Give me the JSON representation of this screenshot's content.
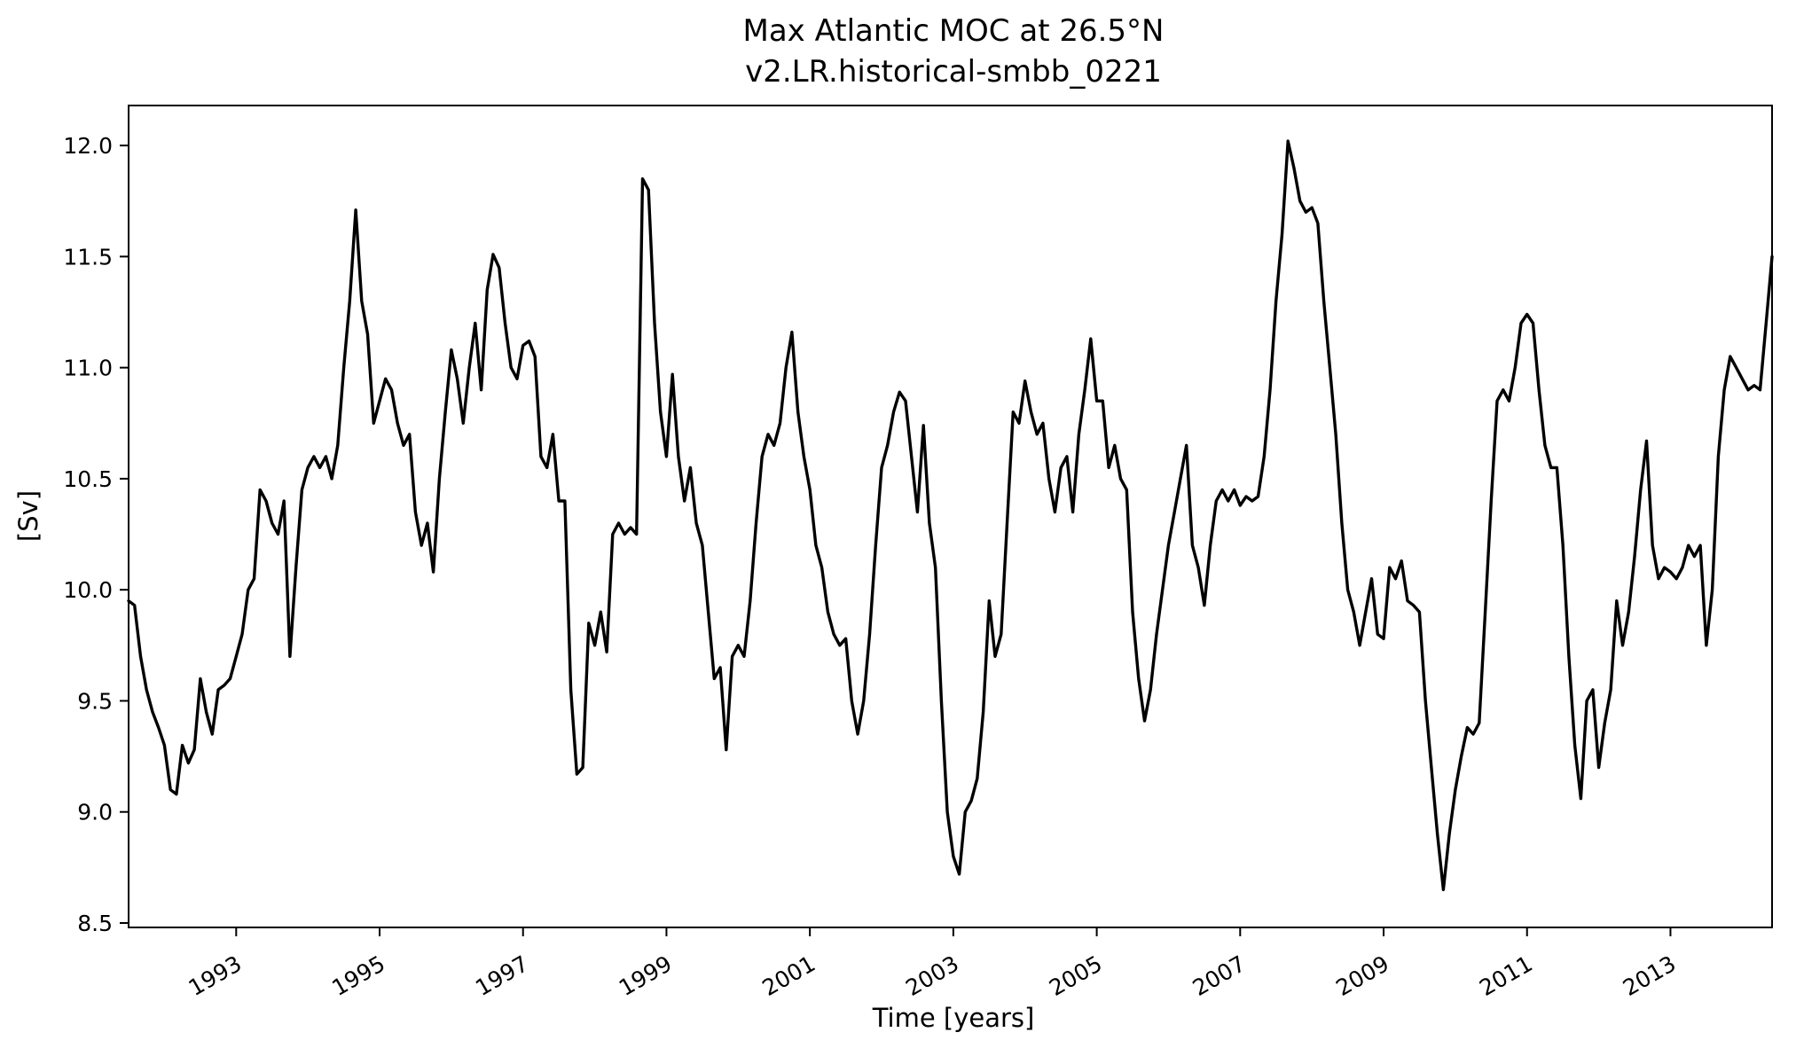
{
  "chart_data": {
    "type": "line",
    "title": "Max Atlantic MOC at 26.5°N",
    "subtitle": "v2.LR.historical-smbb_0221",
    "xlabel": "Time [years]",
    "ylabel": "[Sv]",
    "line_color": "#000000",
    "line_width": 3.4,
    "grid": false,
    "legend": "none",
    "xlim": [
      1991.5,
      2014.4167
    ],
    "ylim": [
      8.48,
      12.18
    ],
    "xticks": [
      1993,
      1995,
      1997,
      1999,
      2001,
      2003,
      2005,
      2007,
      2009,
      2011,
      2013
    ],
    "xtick_labels": [
      "1993",
      "1995",
      "1997",
      "1999",
      "2001",
      "2003",
      "2005",
      "2007",
      "2009",
      "2011",
      "2013"
    ],
    "yticks": [
      8.5,
      9.0,
      9.5,
      10.0,
      10.5,
      11.0,
      11.5,
      12.0
    ],
    "ytick_labels": [
      "8.5",
      "9.0",
      "9.5",
      "10.0",
      "10.5",
      "11.0",
      "11.5",
      "12.0"
    ],
    "x_start": 1991.5,
    "x_step": 0.0833333,
    "values": [
      9.95,
      9.93,
      9.7,
      9.55,
      9.45,
      9.38,
      9.3,
      9.1,
      9.08,
      9.3,
      9.22,
      9.28,
      9.6,
      9.45,
      9.35,
      9.55,
      9.57,
      9.6,
      9.7,
      9.8,
      10.0,
      10.05,
      10.45,
      10.4,
      10.3,
      10.25,
      10.4,
      9.7,
      10.1,
      10.45,
      10.55,
      10.6,
      10.55,
      10.6,
      10.5,
      10.65,
      11.0,
      11.3,
      11.71,
      11.3,
      11.15,
      10.75,
      10.85,
      10.95,
      10.9,
      10.75,
      10.65,
      10.7,
      10.35,
      10.2,
      10.3,
      10.08,
      10.5,
      10.8,
      11.08,
      10.95,
      10.75,
      11.0,
      11.2,
      10.9,
      11.35,
      11.51,
      11.45,
      11.2,
      11.0,
      10.95,
      11.1,
      11.12,
      11.05,
      10.6,
      10.55,
      10.7,
      10.4,
      10.4,
      9.55,
      9.17,
      9.2,
      9.85,
      9.75,
      9.9,
      9.72,
      10.25,
      10.3,
      10.25,
      10.28,
      10.25,
      11.85,
      11.8,
      11.2,
      10.8,
      10.6,
      10.97,
      10.6,
      10.4,
      10.55,
      10.3,
      10.2,
      9.9,
      9.6,
      9.65,
      9.28,
      9.7,
      9.75,
      9.7,
      9.95,
      10.3,
      10.6,
      10.7,
      10.65,
      10.75,
      11.0,
      11.16,
      10.8,
      10.6,
      10.45,
      10.2,
      10.1,
      9.9,
      9.8,
      9.75,
      9.78,
      9.5,
      9.35,
      9.5,
      9.8,
      10.2,
      10.55,
      10.65,
      10.8,
      10.89,
      10.85,
      10.6,
      10.35,
      10.74,
      10.3,
      10.1,
      9.5,
      9.0,
      8.8,
      8.72,
      9.0,
      9.05,
      9.15,
      9.45,
      9.95,
      9.7,
      9.8,
      10.3,
      10.8,
      10.75,
      10.94,
      10.8,
      10.7,
      10.75,
      10.5,
      10.35,
      10.55,
      10.6,
      10.35,
      10.7,
      10.9,
      11.13,
      10.85,
      10.85,
      10.55,
      10.65,
      10.5,
      10.45,
      9.9,
      9.6,
      9.41,
      9.55,
      9.8,
      10.0,
      10.2,
      10.35,
      10.5,
      10.65,
      10.2,
      10.1,
      9.93,
      10.2,
      10.4,
      10.45,
      10.4,
      10.45,
      10.38,
      10.42,
      10.4,
      10.42,
      10.6,
      10.9,
      11.3,
      11.6,
      12.02,
      11.9,
      11.75,
      11.7,
      11.72,
      11.65,
      11.3,
      11.0,
      10.7,
      10.3,
      10.0,
      9.9,
      9.75,
      9.9,
      10.05,
      9.8,
      9.78,
      10.1,
      10.05,
      10.13,
      9.95,
      9.93,
      9.9,
      9.5,
      9.2,
      8.9,
      8.65,
      8.9,
      9.1,
      9.25,
      9.38,
      9.35,
      9.4,
      9.9,
      10.4,
      10.85,
      10.9,
      10.85,
      11.0,
      11.2,
      11.24,
      11.2,
      10.9,
      10.65,
      10.55,
      10.55,
      10.2,
      9.7,
      9.3,
      9.06,
      9.5,
      9.55,
      9.2,
      9.4,
      9.55,
      9.95,
      9.75,
      9.9,
      10.15,
      10.45,
      10.67,
      10.2,
      10.05,
      10.1,
      10.08,
      10.05,
      10.1,
      10.2,
      10.15,
      10.2,
      9.75,
      10.0,
      10.6,
      10.9,
      11.05,
      11.0,
      10.95,
      10.9,
      10.92,
      10.9,
      11.2,
      11.5
    ]
  }
}
